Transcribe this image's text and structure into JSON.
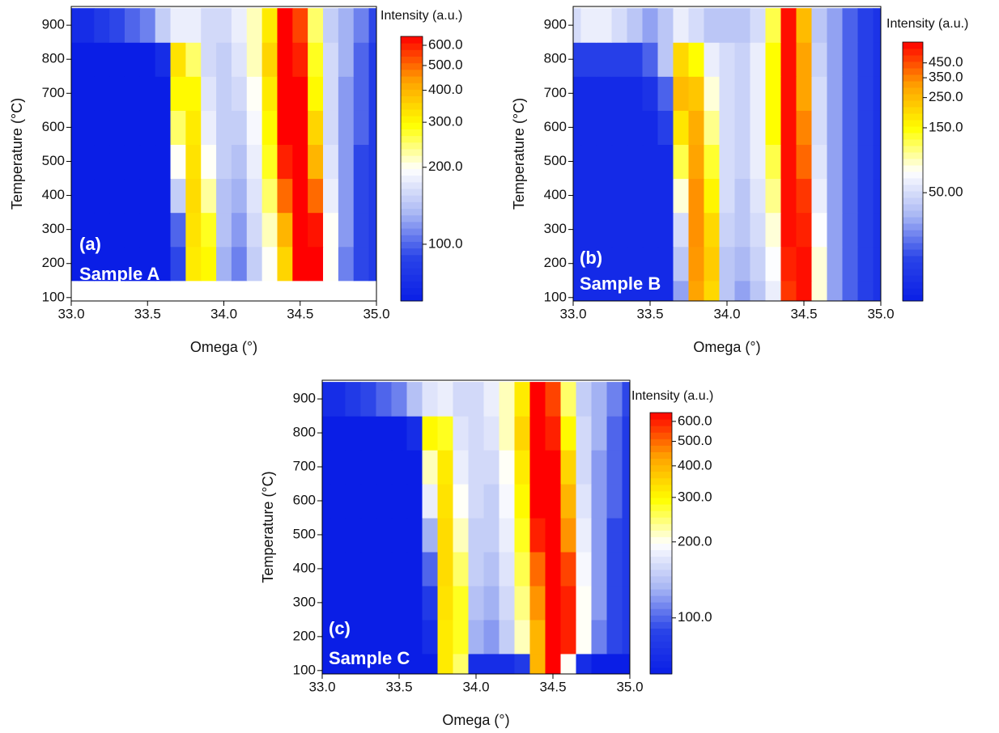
{
  "chart_data": [
    {
      "type": "heatmap",
      "x_label": "Omega (°)",
      "y_label": "Temperature (°C)",
      "annotations": [
        "(a)",
        "Sample A"
      ],
      "x": [
        33.0,
        33.1,
        33.2,
        33.3,
        33.4,
        33.5,
        33.6,
        33.7,
        33.8,
        33.9,
        34.0,
        34.1,
        34.2,
        34.3,
        34.4,
        34.5,
        34.6,
        34.7,
        34.8,
        34.9,
        35.0
      ],
      "y": [
        100,
        200,
        300,
        400,
        500,
        600,
        700,
        800,
        900
      ],
      "values": [
        [
          null,
          null,
          null,
          null,
          null,
          null,
          null,
          null,
          null,
          null,
          null,
          null,
          null,
          null,
          null,
          null,
          null,
          null,
          null,
          null,
          null
        ],
        [
          60,
          60,
          60,
          60,
          60,
          60,
          60,
          90,
          320,
          300,
          130,
          110,
          150,
          200,
          350,
          650,
          650,
          200,
          110,
          90,
          80
        ],
        [
          60,
          60,
          60,
          60,
          60,
          60,
          60,
          100,
          330,
          280,
          140,
          120,
          160,
          220,
          400,
          650,
          620,
          200,
          120,
          90,
          80
        ],
        [
          60,
          60,
          60,
          60,
          60,
          60,
          60,
          150,
          340,
          230,
          140,
          130,
          170,
          250,
          500,
          650,
          500,
          180,
          120,
          90,
          80
        ],
        [
          60,
          60,
          60,
          60,
          60,
          60,
          60,
          200,
          330,
          200,
          150,
          140,
          180,
          280,
          600,
          650,
          400,
          170,
          120,
          90,
          80
        ],
        [
          60,
          60,
          60,
          60,
          60,
          60,
          60,
          250,
          320,
          180,
          150,
          150,
          190,
          300,
          650,
          650,
          350,
          160,
          120,
          100,
          80
        ],
        [
          60,
          60,
          60,
          60,
          60,
          60,
          60,
          300,
          300,
          170,
          150,
          160,
          200,
          320,
          650,
          650,
          300,
          160,
          120,
          100,
          80
        ],
        [
          60,
          60,
          60,
          60,
          60,
          60,
          70,
          330,
          250,
          160,
          150,
          170,
          220,
          350,
          650,
          600,
          280,
          160,
          130,
          100,
          80
        ],
        [
          70,
          70,
          80,
          90,
          100,
          110,
          150,
          180,
          180,
          160,
          160,
          180,
          220,
          320,
          650,
          550,
          250,
          150,
          130,
          110,
          90
        ]
      ],
      "xlim": [
        33.0,
        35.0
      ],
      "ylim": [
        90,
        955
      ],
      "xticks": [
        {
          "value": 33.0,
          "label": "33.0"
        },
        {
          "value": 33.5,
          "label": "33.5"
        },
        {
          "value": 34.0,
          "label": "34.0"
        },
        {
          "value": 34.5,
          "label": "34.5"
        },
        {
          "value": 35.0,
          "label": "35.0"
        }
      ],
      "yticks": [
        100,
        200,
        300,
        400,
        500,
        600,
        700,
        800,
        900
      ],
      "colorbar": {
        "label": "Intensity (a.u.)",
        "log": true,
        "lim": [
          60,
          650
        ],
        "ticks": [
          {
            "value": 100,
            "label": "100.0"
          },
          {
            "value": 200,
            "label": "200.0"
          },
          {
            "value": 300,
            "label": "300.0"
          },
          {
            "value": 400,
            "label": "400.0"
          },
          {
            "value": 500,
            "label": "500.0"
          },
          {
            "value": 600,
            "label": "600.0"
          }
        ],
        "colors": [
          "#0a1ee6",
          "#2a44e8",
          "#aab8f4",
          "#ffffff",
          "#ffff00",
          "#ffa000",
          "#ff0000"
        ]
      }
    },
    {
      "type": "heatmap",
      "x_label": "Omega (°)",
      "y_label": "Temperature (°C)",
      "annotations": [
        "(b)",
        "Sample B"
      ],
      "x": [
        33.0,
        33.1,
        33.2,
        33.3,
        33.4,
        33.5,
        33.6,
        33.7,
        33.8,
        33.9,
        34.0,
        34.1,
        34.2,
        34.3,
        34.4,
        34.5,
        34.6,
        34.7,
        34.8,
        34.9,
        35.0
      ],
      "y": [
        100,
        200,
        300,
        400,
        500,
        600,
        700,
        800,
        900
      ],
      "values": [
        [
          10,
          10,
          10,
          10,
          10,
          10,
          10,
          30,
          300,
          200,
          40,
          30,
          40,
          60,
          500,
          600,
          80,
          30,
          20,
          15,
          12
        ],
        [
          10,
          10,
          10,
          10,
          10,
          10,
          10,
          40,
          320,
          220,
          40,
          35,
          45,
          70,
          550,
          600,
          80,
          30,
          20,
          15,
          12
        ],
        [
          10,
          10,
          10,
          10,
          10,
          10,
          10,
          50,
          330,
          200,
          45,
          40,
          50,
          80,
          600,
          550,
          70,
          30,
          20,
          15,
          12
        ],
        [
          10,
          10,
          10,
          10,
          10,
          10,
          10,
          80,
          330,
          160,
          50,
          40,
          55,
          100,
          600,
          500,
          60,
          30,
          20,
          15,
          12
        ],
        [
          10,
          10,
          10,
          10,
          10,
          10,
          10,
          120,
          300,
          130,
          50,
          45,
          60,
          120,
          600,
          400,
          55,
          30,
          20,
          15,
          12
        ],
        [
          10,
          10,
          10,
          10,
          10,
          10,
          15,
          180,
          280,
          100,
          50,
          45,
          60,
          150,
          600,
          350,
          50,
          30,
          20,
          15,
          12
        ],
        [
          10,
          10,
          10,
          10,
          10,
          12,
          20,
          250,
          230,
          80,
          50,
          45,
          60,
          150,
          600,
          300,
          50,
          30,
          20,
          15,
          12
        ],
        [
          15,
          15,
          15,
          15,
          15,
          20,
          40,
          200,
          150,
          60,
          50,
          45,
          60,
          150,
          600,
          300,
          45,
          30,
          20,
          15,
          12
        ],
        [
          50,
          60,
          60,
          50,
          40,
          30,
          40,
          60,
          50,
          40,
          40,
          40,
          50,
          120,
          600,
          250,
          40,
          30,
          20,
          15,
          12
        ]
      ],
      "xlim": [
        33.0,
        35.0
      ],
      "ylim": [
        90,
        955
      ],
      "xticks": [
        {
          "value": 33.0,
          "label": "33.0"
        },
        {
          "value": 33.5,
          "label": "33.5"
        },
        {
          "value": 34.0,
          "label": "34.0"
        },
        {
          "value": 34.5,
          "label": "34.5"
        },
        {
          "value": 35.0,
          "label": "35.0"
        }
      ],
      "yticks": [
        100,
        200,
        300,
        400,
        500,
        600,
        700,
        800,
        900
      ],
      "colorbar": {
        "label": "Intensity (a.u.)",
        "log": true,
        "lim": [
          8,
          640
        ],
        "ticks": [
          {
            "value": 50,
            "label": "50.00"
          },
          {
            "value": 150,
            "label": "150.0"
          },
          {
            "value": 250,
            "label": "250.0"
          },
          {
            "value": 350,
            "label": "350.0"
          },
          {
            "value": 450,
            "label": "450.0"
          }
        ],
        "colors": [
          "#0a1ee6",
          "#2a44e8",
          "#aab8f4",
          "#ffffff",
          "#ffff00",
          "#ffa000",
          "#ff0000"
        ]
      }
    },
    {
      "type": "heatmap",
      "x_label": "Omega (°)",
      "y_label": "Temperature (°C)",
      "annotations": [
        "(c)",
        "Sample C"
      ],
      "x": [
        33.0,
        33.1,
        33.2,
        33.3,
        33.4,
        33.5,
        33.6,
        33.7,
        33.8,
        33.9,
        34.0,
        34.1,
        34.2,
        34.3,
        34.4,
        34.5,
        34.6,
        34.7,
        34.8,
        34.9,
        35.0
      ],
      "y": [
        100,
        200,
        300,
        400,
        500,
        600,
        700,
        800,
        900
      ],
      "values": [
        [
          60,
          60,
          60,
          60,
          60,
          60,
          60,
          60,
          320,
          250,
          70,
          70,
          70,
          80,
          400,
          650,
          200,
          70,
          60,
          60,
          60
        ],
        [
          60,
          60,
          60,
          60,
          60,
          60,
          60,
          70,
          320,
          280,
          130,
          120,
          150,
          220,
          400,
          650,
          600,
          200,
          110,
          90,
          80
        ],
        [
          60,
          60,
          60,
          60,
          60,
          60,
          60,
          80,
          330,
          280,
          140,
          130,
          160,
          240,
          450,
          650,
          600,
          200,
          120,
          90,
          80
        ],
        [
          60,
          60,
          60,
          60,
          60,
          60,
          60,
          100,
          340,
          250,
          150,
          140,
          170,
          260,
          500,
          650,
          550,
          190,
          120,
          90,
          80
        ],
        [
          60,
          60,
          60,
          60,
          60,
          60,
          60,
          130,
          340,
          220,
          150,
          150,
          180,
          280,
          600,
          650,
          450,
          180,
          120,
          90,
          80
        ],
        [
          60,
          60,
          60,
          60,
          60,
          60,
          60,
          180,
          330,
          200,
          160,
          150,
          190,
          300,
          650,
          650,
          400,
          170,
          120,
          100,
          80
        ],
        [
          60,
          60,
          60,
          60,
          60,
          60,
          60,
          220,
          320,
          180,
          160,
          160,
          200,
          320,
          650,
          650,
          350,
          160,
          120,
          100,
          80
        ],
        [
          60,
          60,
          60,
          60,
          60,
          60,
          70,
          300,
          280,
          170,
          160,
          170,
          220,
          350,
          650,
          600,
          300,
          160,
          130,
          100,
          80
        ],
        [
          70,
          70,
          80,
          90,
          100,
          110,
          140,
          170,
          180,
          160,
          160,
          180,
          220,
          320,
          650,
          550,
          250,
          150,
          130,
          110,
          90
        ]
      ],
      "xlim": [
        33.0,
        35.0
      ],
      "ylim": [
        90,
        955
      ],
      "xticks": [
        {
          "value": 33.0,
          "label": "33.0"
        },
        {
          "value": 33.5,
          "label": "33.5"
        },
        {
          "value": 34.0,
          "label": "34.0"
        },
        {
          "value": 34.5,
          "label": "34.5"
        },
        {
          "value": 35.0,
          "label": "35.0"
        }
      ],
      "yticks": [
        100,
        200,
        300,
        400,
        500,
        600,
        700,
        800,
        900
      ],
      "colorbar": {
        "label": "Intensity (a.u.)",
        "log": true,
        "lim": [
          60,
          650
        ],
        "ticks": [
          {
            "value": 100,
            "label": "100.0"
          },
          {
            "value": 200,
            "label": "200.0"
          },
          {
            "value": 300,
            "label": "300.0"
          },
          {
            "value": 400,
            "label": "400.0"
          },
          {
            "value": 500,
            "label": "500.0"
          },
          {
            "value": 600,
            "label": "600.0"
          }
        ],
        "colors": [
          "#0a1ee6",
          "#2a44e8",
          "#aab8f4",
          "#ffffff",
          "#ffff00",
          "#ffa000",
          "#ff0000"
        ]
      }
    }
  ]
}
